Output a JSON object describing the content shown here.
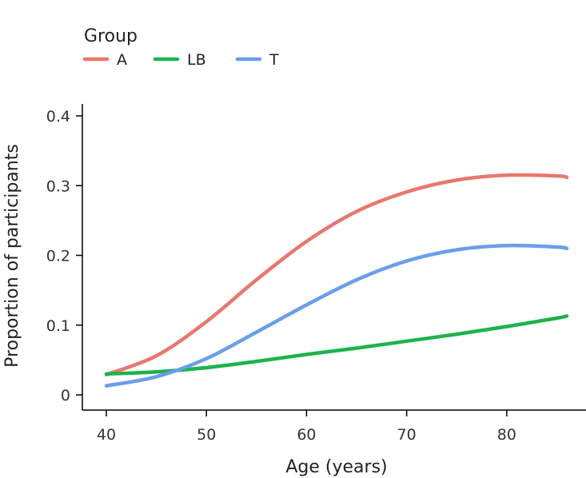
{
  "chart_data": {
    "type": "line",
    "xlabel": "Age (years)",
    "ylabel": "Proportion of participants",
    "xlim": [
      40,
      86
    ],
    "ylim": [
      0,
      0.4
    ],
    "xticks": [
      40,
      50,
      60,
      70,
      80
    ],
    "yticks": [
      0,
      0.1,
      0.2,
      0.3,
      0.4
    ],
    "xtick_labels": [
      "40",
      "50",
      "60",
      "70",
      "80"
    ],
    "ytick_labels": [
      "0",
      "0.1",
      "0.2",
      "0.3",
      "0.4"
    ],
    "grid": false,
    "legend": {
      "title": "Group",
      "placement": "top-left"
    },
    "x": [
      40,
      45,
      50,
      55,
      60,
      65,
      70,
      75,
      80,
      85,
      86
    ],
    "series": [
      {
        "name": "A",
        "color": "#E8776F",
        "values": [
          0.029,
          0.056,
          0.105,
          0.165,
          0.22,
          0.263,
          0.291,
          0.308,
          0.315,
          0.314,
          0.312
        ]
      },
      {
        "name": "LB",
        "color": "#1DB34A",
        "values": [
          0.03,
          0.033,
          0.039,
          0.048,
          0.058,
          0.067,
          0.077,
          0.087,
          0.098,
          0.11,
          0.113
        ]
      },
      {
        "name": "T",
        "color": "#6A9EE8",
        "values": [
          0.013,
          0.026,
          0.052,
          0.09,
          0.129,
          0.165,
          0.192,
          0.208,
          0.214,
          0.212,
          0.21
        ]
      }
    ]
  }
}
